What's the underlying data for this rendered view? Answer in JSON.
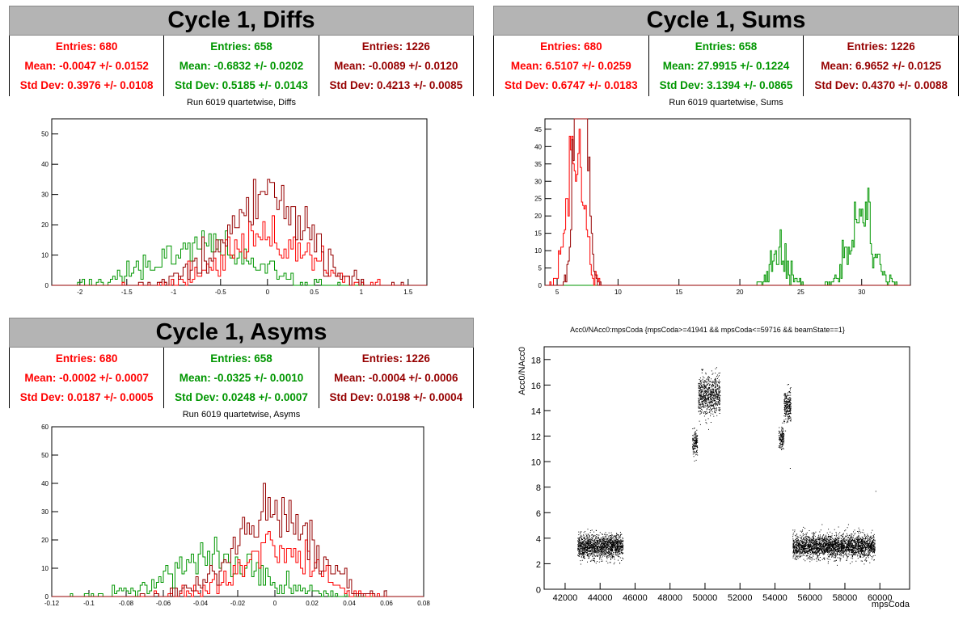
{
  "colors": {
    "red": "#ff0000",
    "green": "#009600",
    "darkred": "#960000"
  },
  "panels": {
    "diffs": {
      "header": "Cycle 1, Diffs",
      "subtitle": "Run 6019 quartetwise, Diffs",
      "stats": [
        {
          "entries": "Entries: 680",
          "mean": "Mean: -0.0047 +/- 0.0152",
          "std": "Std Dev: 0.3976 +/- 0.0108",
          "color": "red"
        },
        {
          "entries": "Entries: 658",
          "mean": "Mean: -0.6832 +/- 0.0202",
          "std": "Std Dev: 0.5185 +/- 0.0143",
          "color": "green"
        },
        {
          "entries": "Entries: 1226",
          "mean": "Mean: -0.0089 +/- 0.0120",
          "std": "Std Dev: 0.4213 +/- 0.0085",
          "color": "darkred"
        }
      ]
    },
    "sums": {
      "header": "Cycle 1, Sums",
      "subtitle": "Run 6019 quartetwise, Sums",
      "stats": [
        {
          "entries": "Entries: 680",
          "mean": "Mean: 6.5107 +/- 0.0259",
          "std": "Std Dev: 0.6747 +/- 0.0183",
          "color": "red"
        },
        {
          "entries": "Entries: 658",
          "mean": "Mean: 27.9915 +/- 0.1224",
          "std": "Std Dev: 3.1394 +/- 0.0865",
          "color": "green"
        },
        {
          "entries": "Entries: 1226",
          "mean": "Mean: 6.9652 +/- 0.0125",
          "std": "Std Dev: 0.4370 +/- 0.0088",
          "color": "darkred"
        }
      ]
    },
    "asyms": {
      "header": "Cycle 1, Asyms",
      "subtitle": "Run 6019 quartetwise, Asyms",
      "stats": [
        {
          "entries": "Entries: 680",
          "mean": "Mean: -0.0002 +/- 0.0007",
          "std": "Std Dev: 0.0187 +/- 0.0005",
          "color": "red"
        },
        {
          "entries": "Entries: 658",
          "mean": "Mean: -0.0325 +/- 0.0010",
          "std": "Std Dev: 0.0248 +/- 0.0007",
          "color": "green"
        },
        {
          "entries": "Entries: 1226",
          "mean": "Mean: -0.0004 +/- 0.0006",
          "std": "Std Dev: 0.0198 +/- 0.0004",
          "color": "darkred"
        }
      ]
    }
  },
  "chart_data": [
    {
      "id": "diffs",
      "type": "histogram",
      "xlim": [
        -2.3,
        1.7
      ],
      "ylim": [
        0,
        55
      ],
      "xticks": [
        -2,
        -1.5,
        -1,
        -0.5,
        0,
        0.5,
        1,
        1.5
      ],
      "yticks": [
        0,
        10,
        20,
        30,
        40,
        50
      ],
      "bins": 160,
      "series": [
        {
          "color": "red",
          "mean": -0.0047,
          "sd": 0.3976,
          "entries": 680
        },
        {
          "color": "green",
          "mean": -0.6832,
          "sd": 0.5185,
          "entries": 658
        },
        {
          "color": "darkred",
          "mean": -0.0089,
          "sd": 0.4213,
          "entries": 1226
        }
      ]
    },
    {
      "id": "sums",
      "type": "histogram",
      "xlim": [
        4,
        34
      ],
      "ylim": [
        0,
        48
      ],
      "xticks": [
        5,
        10,
        15,
        20,
        25,
        30
      ],
      "yticks": [
        0,
        5,
        10,
        15,
        20,
        25,
        30,
        35,
        40,
        45
      ],
      "bins": 300,
      "series": [
        {
          "color": "red",
          "mean": 6.5107,
          "sd": 0.6747,
          "entries": 680
        },
        {
          "color": "green",
          "components": [
            {
              "mean": 23.3,
              "sd": 0.7,
              "entries": 160
            },
            {
              "mean": 30.0,
              "sd": 1.0,
              "entries": 498
            }
          ]
        },
        {
          "color": "darkred",
          "mean": 6.9652,
          "sd": 0.437,
          "entries": 1226
        }
      ]
    },
    {
      "id": "asyms",
      "type": "histogram",
      "xlim": [
        -0.12,
        0.08
      ],
      "ylim": [
        0,
        60
      ],
      "xticks": [
        -0.12,
        -0.1,
        -0.08,
        -0.06,
        -0.04,
        -0.02,
        0,
        0.02,
        0.04,
        0.06,
        0.08
      ],
      "yticks": [
        0,
        10,
        20,
        30,
        40,
        50,
        60
      ],
      "bins": 160,
      "series": [
        {
          "color": "red",
          "mean": -0.0002,
          "sd": 0.0187,
          "entries": 680
        },
        {
          "color": "green",
          "mean": -0.0325,
          "sd": 0.0248,
          "entries": 658
        },
        {
          "color": "darkred",
          "mean": -0.0004,
          "sd": 0.0198,
          "entries": 1226
        }
      ]
    },
    {
      "id": "scatter",
      "type": "scatter",
      "title": "Acc0/NAcc0:mpsCoda {mpsCoda>=41941 && mpsCoda<=59716 && beamState==1}",
      "xlabel": "mpsCoda",
      "ylabel": "Acc0/NAcc0",
      "xlim": [
        40800,
        61700
      ],
      "ylim": [
        0,
        19
      ],
      "xticks": [
        42000,
        44000,
        46000,
        48000,
        50000,
        52000,
        54000,
        56000,
        58000,
        60000
      ],
      "yticks": [
        0,
        2,
        4,
        6,
        8,
        10,
        12,
        14,
        16,
        18
      ],
      "clusters": [
        {
          "x": [
            42700,
            45300
          ],
          "y": [
            3.4,
            0.45
          ],
          "n": 1500
        },
        {
          "x": [
            49250,
            49550
          ],
          "y": [
            11.5,
            0.5
          ],
          "n": 140
        },
        {
          "x": [
            49600,
            50850
          ],
          "y": [
            15.2,
            0.75
          ],
          "n": 700
        },
        {
          "x": [
            54200,
            54500
          ],
          "y": [
            11.8,
            0.5
          ],
          "n": 140
        },
        {
          "x": [
            54500,
            54900
          ],
          "y": [
            14.4,
            0.6
          ],
          "n": 240
        },
        {
          "x": [
            55000,
            59700
          ],
          "y": [
            3.4,
            0.45
          ],
          "n": 2600
        }
      ]
    }
  ]
}
